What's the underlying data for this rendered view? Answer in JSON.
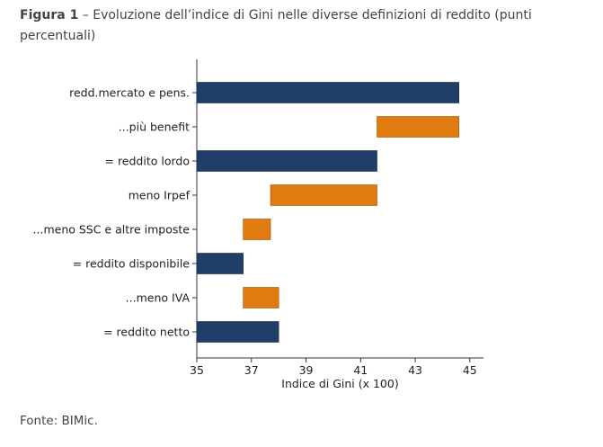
{
  "figure": {
    "label": "Figura 1",
    "separator": " – ",
    "title": "Evoluzione dell’indice di Gini nelle diverse definizioni di reddito (punti percentuali)"
  },
  "source": "Fonte: BIMic.",
  "chart_data": {
    "type": "bar",
    "orientation": "horizontal",
    "subtype": "waterfall",
    "xlabel": "Indice di Gini (x 100)",
    "xlim": [
      35,
      45.5
    ],
    "xticks": [
      35,
      37,
      39,
      41,
      43,
      45
    ],
    "grid": false,
    "legend": "none",
    "colors": {
      "total": "#1f3f68",
      "change": "#e07b10"
    },
    "bars": [
      {
        "label": "redd.mercato e pens.",
        "start": 35,
        "end": 44.6,
        "kind": "total"
      },
      {
        "label": "...più benefit",
        "start": 41.6,
        "end": 44.6,
        "kind": "change"
      },
      {
        "label": "= reddito lordo",
        "start": 35,
        "end": 41.6,
        "kind": "total"
      },
      {
        "label": "meno Irpef",
        "start": 37.7,
        "end": 41.6,
        "kind": "change"
      },
      {
        "label": "...meno SSC e altre imposte",
        "start": 36.7,
        "end": 37.7,
        "kind": "change"
      },
      {
        "label": "= reddito disponibile",
        "start": 35,
        "end": 36.7,
        "kind": "total"
      },
      {
        "label": "...meno IVA",
        "start": 36.7,
        "end": 38.0,
        "kind": "change"
      },
      {
        "label": "= reddito netto",
        "start": 35,
        "end": 38.0,
        "kind": "total"
      }
    ]
  }
}
